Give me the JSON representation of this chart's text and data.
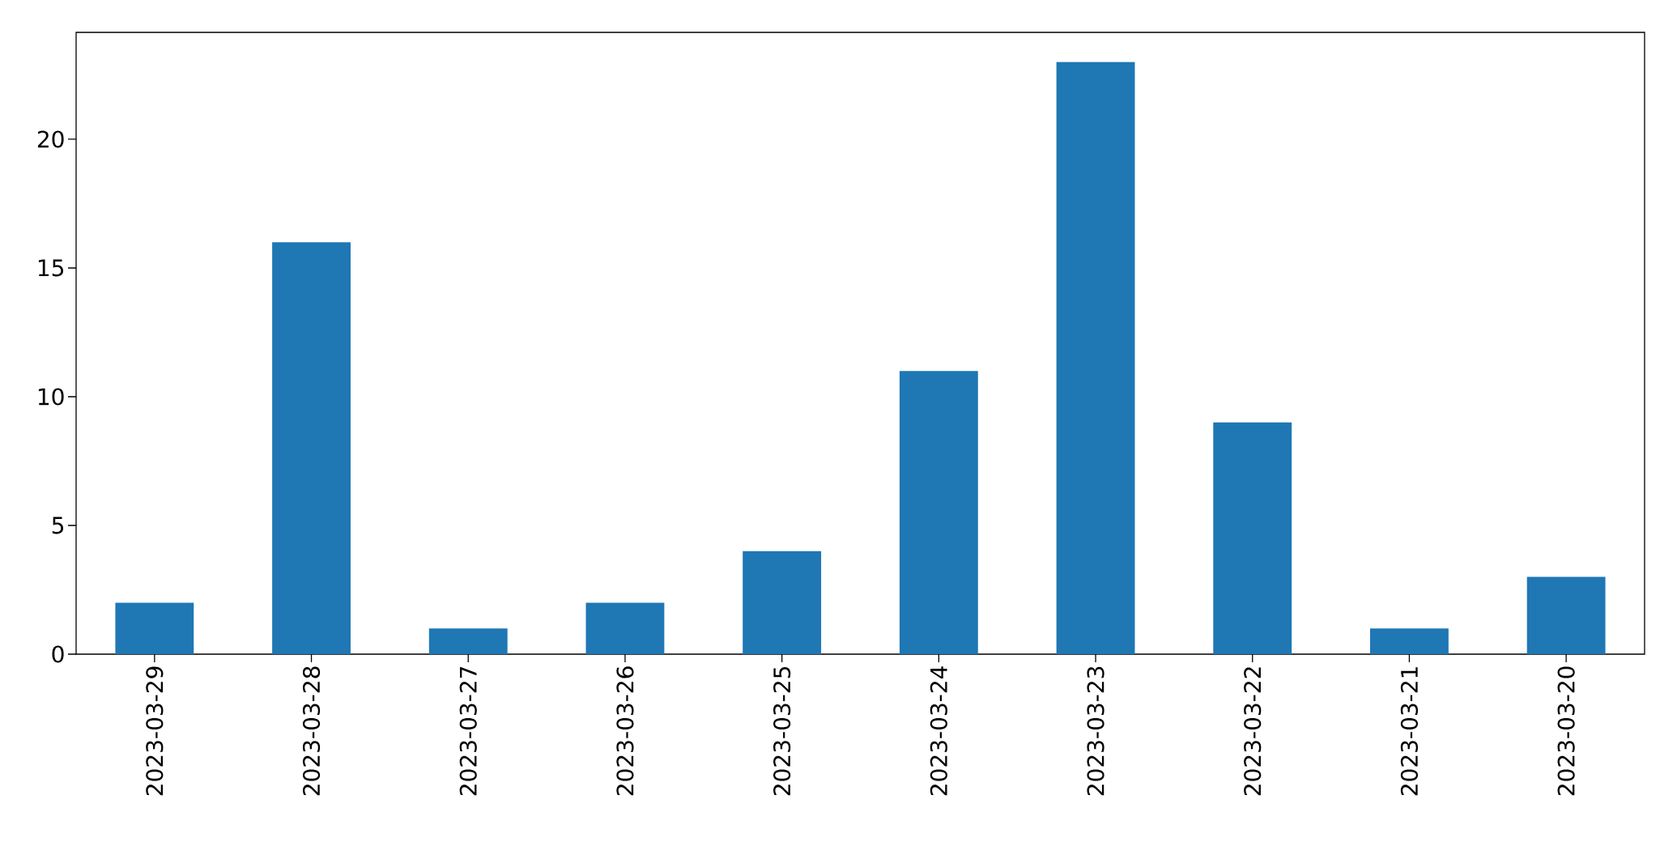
{
  "chart_data": {
    "type": "bar",
    "categories": [
      "2023-03-29",
      "2023-03-28",
      "2023-03-27",
      "2023-03-26",
      "2023-03-25",
      "2023-03-24",
      "2023-03-23",
      "2023-03-22",
      "2023-03-21",
      "2023-03-20"
    ],
    "values": [
      2,
      16,
      1,
      2,
      4,
      11,
      23,
      9,
      1,
      3
    ],
    "color": "#1f77b4",
    "ylim": [
      0,
      24.15
    ],
    "yticks": [
      0,
      5,
      10,
      15,
      20
    ]
  }
}
